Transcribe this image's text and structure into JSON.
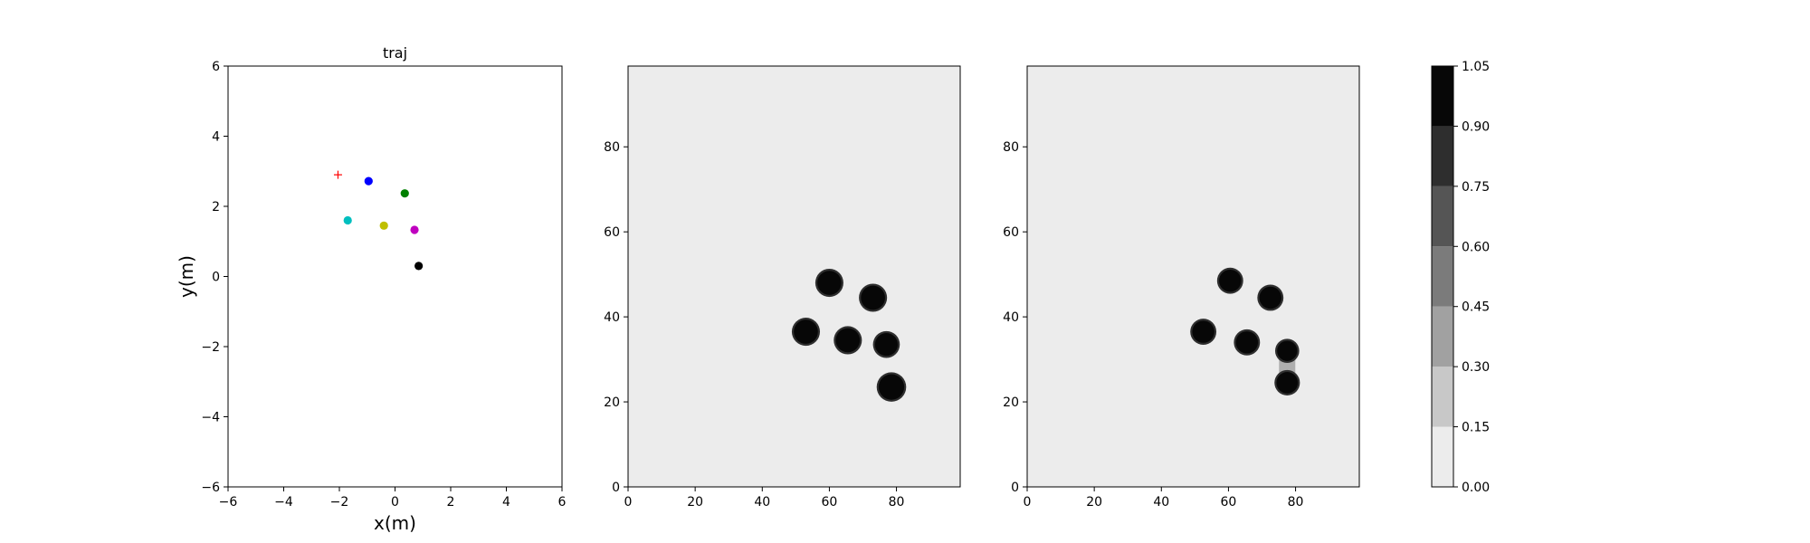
{
  "chart_data": [
    {
      "type": "scatter",
      "title": "traj",
      "xlabel": "x(m)",
      "ylabel": "y(m)",
      "xlim": [
        -6,
        6
      ],
      "ylim": [
        -6,
        6
      ],
      "xticks": [
        -6,
        -4,
        -2,
        0,
        2,
        4,
        6
      ],
      "yticks": [
        -6,
        -4,
        -2,
        0,
        2,
        4,
        6
      ],
      "points": [
        {
          "x": -2.05,
          "y": 2.9,
          "marker": "plus",
          "color": "#ff0000"
        },
        {
          "x": -0.95,
          "y": 2.72,
          "marker": "circle",
          "color": "#0000ff"
        },
        {
          "x": 0.35,
          "y": 2.37,
          "marker": "circle",
          "color": "#008000"
        },
        {
          "x": -1.7,
          "y": 1.6,
          "marker": "circle",
          "color": "#00bfbf"
        },
        {
          "x": -0.4,
          "y": 1.45,
          "marker": "circle",
          "color": "#bfbf00"
        },
        {
          "x": 0.7,
          "y": 1.33,
          "marker": "circle",
          "color": "#bf00bf"
        },
        {
          "x": 0.85,
          "y": 0.3,
          "marker": "circle",
          "color": "#000000"
        }
      ],
      "grid": false
    },
    {
      "type": "heatmap",
      "title": "",
      "xlim": [
        0,
        99
      ],
      "ylim": [
        0,
        99
      ],
      "xticks": [
        0,
        20,
        40,
        60,
        80
      ],
      "yticks": [
        0,
        20,
        40,
        60,
        80
      ],
      "background_value": 0.03,
      "blobs": [
        {
          "x": 60,
          "y": 48,
          "r": 3.6
        },
        {
          "x": 73,
          "y": 44.5,
          "r": 3.6
        },
        {
          "x": 53,
          "y": 36.5,
          "r": 3.6
        },
        {
          "x": 65.5,
          "y": 34.5,
          "r": 3.6
        },
        {
          "x": 77,
          "y": 33.5,
          "r": 3.4
        },
        {
          "x": 78.5,
          "y": 23.5,
          "r": 3.8
        }
      ]
    },
    {
      "type": "heatmap",
      "title": "",
      "xlim": [
        0,
        99
      ],
      "ylim": [
        0,
        99
      ],
      "xticks": [
        0,
        20,
        40,
        60,
        80
      ],
      "yticks": [
        0,
        20,
        40,
        60,
        80
      ],
      "background_value": 0.03,
      "blobs": [
        {
          "x": 60.5,
          "y": 48.5,
          "r": 3.3
        },
        {
          "x": 72.5,
          "y": 44.5,
          "r": 3.3
        },
        {
          "x": 52.5,
          "y": 36.5,
          "r": 3.3
        },
        {
          "x": 65.5,
          "y": 34,
          "r": 3.3
        },
        {
          "x": 77.5,
          "y": 32,
          "r": 3.0
        },
        {
          "x": 77.5,
          "y": 24.5,
          "r": 3.2
        }
      ],
      "smear": {
        "x": 77.5,
        "y_from": 24.5,
        "y_to": 32
      }
    },
    {
      "type": "colorbar",
      "levels": [
        0.0,
        0.15,
        0.3,
        0.45,
        0.6,
        0.75,
        0.9,
        1.05
      ],
      "tick_labels": [
        "0.00",
        "0.15",
        "0.30",
        "0.45",
        "0.60",
        "0.75",
        "0.90",
        "1.05"
      ],
      "colors": [
        "#ececec",
        "#c8c8c8",
        "#a1a1a1",
        "#7b7b7b",
        "#555555",
        "#2e2e2e",
        "#070707"
      ]
    }
  ]
}
